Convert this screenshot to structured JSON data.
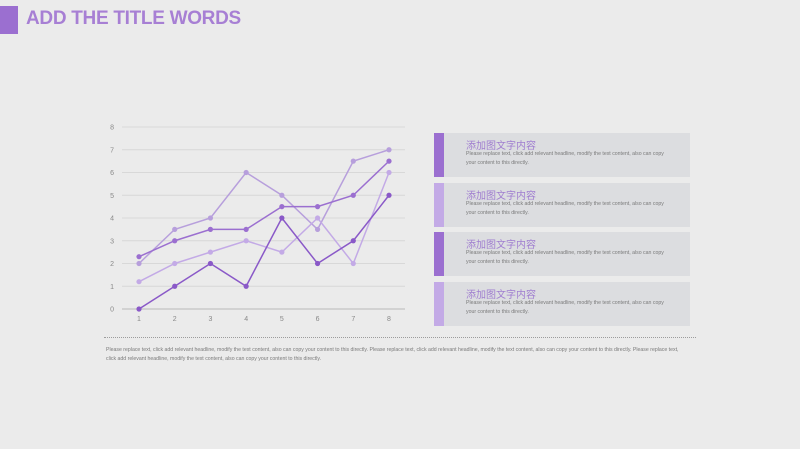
{
  "header": {
    "title": "ADD THE TITLE WORDS"
  },
  "colors": {
    "accent": "#9b6fd0",
    "series": [
      "#b79fdc",
      "#9b6fd0",
      "#c3aae6",
      "#8a59c8"
    ],
    "card_bars": [
      "#9b6fd0",
      "#c3aae6",
      "#9b6fd0",
      "#c3aae6"
    ]
  },
  "cards": [
    {
      "title": "添加图文字内容",
      "text": "Please replace text, click add relevant headline, modify the text content, also can copy your content to this directly."
    },
    {
      "title": "添加图文字内容",
      "text": "Please replace text, click add relevant headline, modify the text content, also can copy your content to this directly."
    },
    {
      "title": "添加图文字内容",
      "text": "Please replace text, click add relevant headline, modify the text content, also can copy your content to this directly."
    },
    {
      "title": "添加图文字内容",
      "text": "Please replace text, click add relevant headline, modify the text content, also can copy your content to this directly."
    }
  ],
  "footnote": "Please replace text, click add relevant headline, modify the text content, also can copy your content to this directly. Please replace text, click add relevant headline, modify the text content, also can copy your content to this directly. Please replace text, click add relevant headline, modify the text content, also can copy your content to this directly.",
  "chart_data": {
    "type": "line",
    "x": [
      1,
      2,
      3,
      4,
      5,
      6,
      7,
      8
    ],
    "xticks": [
      "1",
      "2",
      "3",
      "4",
      "5",
      "6",
      "7",
      "8"
    ],
    "yticks": [
      "0",
      "1",
      "2",
      "3",
      "4",
      "5",
      "6",
      "7",
      "8"
    ],
    "ylim": [
      0,
      8
    ],
    "grid": true,
    "legend": "none",
    "series": [
      {
        "values": [
          2,
          3.5,
          4,
          6,
          5,
          3.5,
          6.5,
          7
        ]
      },
      {
        "values": [
          2.3,
          3,
          3.5,
          3.5,
          4.5,
          4.5,
          5,
          6.5
        ]
      },
      {
        "values": [
          1.2,
          2,
          2.5,
          3,
          2.5,
          4,
          2,
          6
        ]
      },
      {
        "values": [
          0,
          1,
          2,
          1,
          4,
          2,
          3,
          5
        ]
      }
    ]
  }
}
